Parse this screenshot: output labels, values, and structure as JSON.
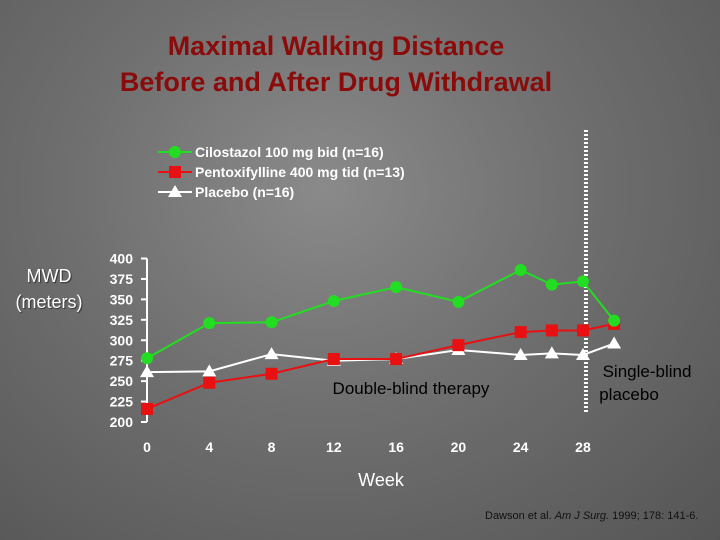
{
  "title_line1": "Maximal Walking Distance",
  "title_line2": "Before and After Drug Withdrawal",
  "ylabel_line1": "MWD",
  "ylabel_line2": "(meters)",
  "annotations": {
    "double_blind": "Double-blind therapy",
    "single_blind_line1": "Single-blind",
    "single_blind_line2": "placebo"
  },
  "citation": {
    "prefix": "Dawson et al. ",
    "journal": "Am J Surg.",
    "rest": " 1999; 178: 141-6."
  },
  "chart_data": {
    "type": "line",
    "xlabel": "Week",
    "ylabel": "MWD (meters)",
    "xlim": [
      0,
      28
    ],
    "ylim": [
      200,
      400
    ],
    "x_ticks": [
      0,
      4,
      8,
      12,
      16,
      20,
      24,
      28
    ],
    "y_ticks": [
      200,
      225,
      250,
      275,
      300,
      325,
      350,
      375,
      400
    ],
    "legend_position": "top-left",
    "divider_week": 28,
    "series": [
      {
        "name": "Cilostazol 100 mg bid (n=16)",
        "color": "#22dd22",
        "marker": "circle",
        "x": [
          0,
          4,
          8,
          12,
          16,
          20,
          24,
          26,
          28,
          30
        ],
        "y": [
          278,
          321,
          322,
          348,
          365,
          347,
          386,
          368,
          372,
          324
        ]
      },
      {
        "name": "Pentoxifylline 400 mg tid (n=13)",
        "color": "#e81010",
        "marker": "square",
        "x": [
          0,
          4,
          8,
          12,
          16,
          20,
          24,
          26,
          28,
          30
        ],
        "y": [
          216,
          248,
          259,
          277,
          277,
          294,
          310,
          312,
          312,
          320
        ]
      },
      {
        "name": "Placebo (n=16)",
        "color": "#ffffff",
        "marker": "triangle",
        "x": [
          0,
          4,
          8,
          12,
          16,
          20,
          24,
          26,
          28,
          30
        ],
        "y": [
          261,
          262,
          283,
          275,
          277,
          288,
          282,
          284,
          282,
          296
        ]
      }
    ]
  }
}
